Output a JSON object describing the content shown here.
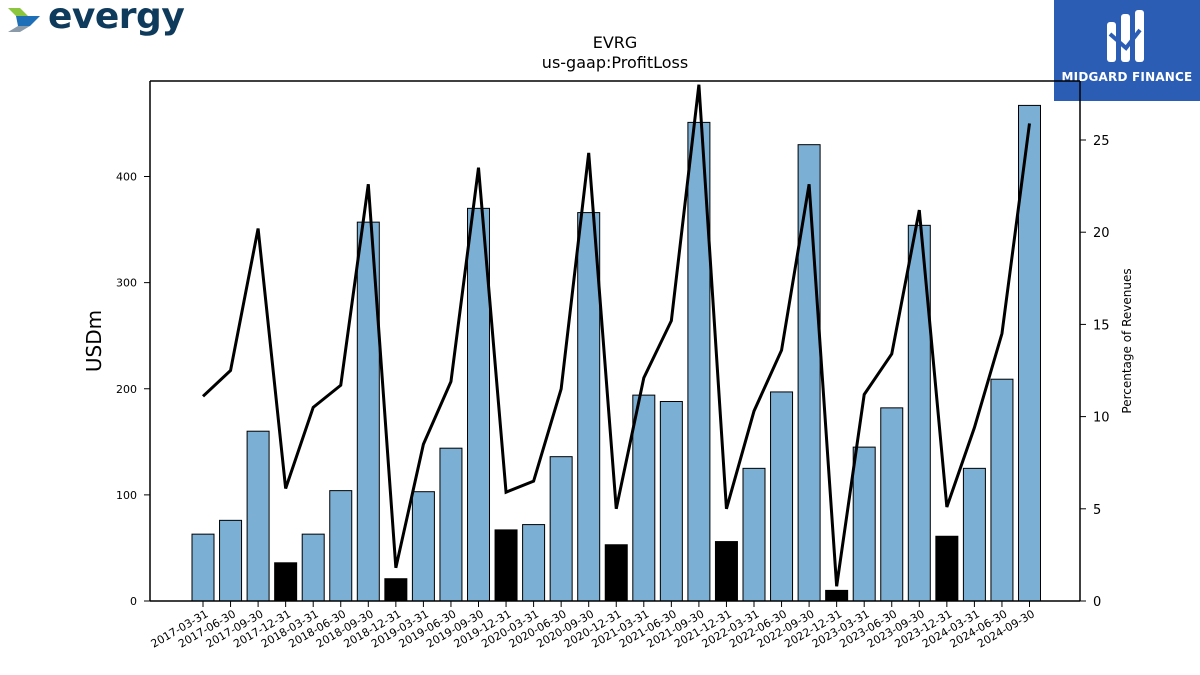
{
  "brand": {
    "left_logo_text": "evergy",
    "right_logo_text": "MIDGARD FINANCE"
  },
  "colors": {
    "bar_positive": "#7bafd4",
    "bar_q4": "#000000",
    "line": "#000000",
    "right_logo_bg": "#2b5db5",
    "evergy_text": "#0e3a5b"
  },
  "chart_data": {
    "type": "bar",
    "title": "EVRG",
    "subtitle": "us-gaap:ProfitLoss",
    "ylabel": "USDm",
    "y2label": "Percentage of Revenues",
    "ylim": [
      0,
      490
    ],
    "y2lim": [
      0,
      28.2
    ],
    "yticks": [
      0,
      100,
      200,
      300,
      400
    ],
    "y2ticks": [
      0,
      5,
      10,
      15,
      20,
      25
    ],
    "grid": false,
    "categories": [
      "2017-03-31",
      "2017-06-30",
      "2017-09-30",
      "2017-12-31",
      "2018-03-31",
      "2018-06-30",
      "2018-09-30",
      "2018-12-31",
      "2019-03-31",
      "2019-06-30",
      "2019-09-30",
      "2019-12-31",
      "2020-03-31",
      "2020-06-30",
      "2020-09-30",
      "2020-12-31",
      "2021-03-31",
      "2021-06-30",
      "2021-09-30",
      "2021-12-31",
      "2022-03-31",
      "2022-06-30",
      "2022-09-30",
      "2022-12-31",
      "2023-03-31",
      "2023-06-30",
      "2023-09-30",
      "2023-12-31",
      "2024-03-31",
      "2024-06-30",
      "2024-09-30"
    ],
    "series": [
      {
        "values": [
          63,
          76,
          160,
          36,
          63,
          104,
          357,
          21,
          103,
          144,
          370,
          67,
          72,
          136,
          366,
          53,
          194,
          188,
          451,
          56,
          125,
          197,
          430,
          10,
          145,
          182,
          354,
          61,
          125,
          209,
          467
        ]
      },
      {
        "axis": "right",
        "values": [
          11.1,
          12.5,
          20.2,
          6.1,
          10.5,
          11.7,
          22.6,
          1.8,
          8.5,
          11.9,
          23.5,
          5.9,
          6.5,
          11.5,
          24.3,
          5.0,
          12.1,
          15.2,
          28.0,
          5.0,
          10.3,
          13.6,
          22.6,
          0.8,
          11.2,
          13.4,
          21.2,
          5.1,
          9.4,
          14.5,
          25.9
        ]
      }
    ],
    "highlight_categories": [
      "2017-12-31",
      "2018-12-31",
      "2019-12-31",
      "2020-12-31",
      "2021-12-31",
      "2022-12-31",
      "2023-12-31"
    ]
  }
}
